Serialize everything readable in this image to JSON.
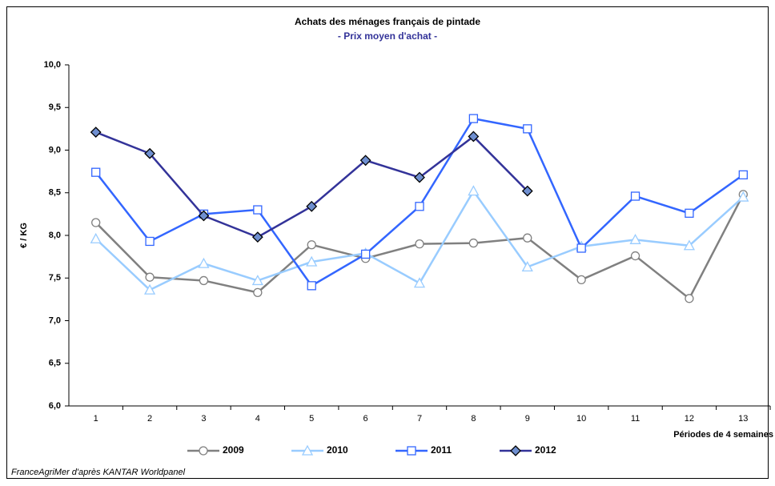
{
  "chart_data": {
    "type": "line",
    "title": "Achats des ménages français de pintade",
    "subtitle": "- Prix moyen d'achat -",
    "y_label": "€ / KG",
    "x_label": "Périodes de 4 semaines",
    "source": "FranceAgriMer d'après KANTAR Worldpanel",
    "categories": [
      "1",
      "2",
      "3",
      "4",
      "5",
      "6",
      "7",
      "8",
      "9",
      "10",
      "11",
      "12",
      "13"
    ],
    "ylim": [
      6,
      10
    ],
    "yticks": [
      {
        "value": 6,
        "label": "6,0"
      },
      {
        "value": 6.5,
        "label": "6,5"
      },
      {
        "value": 7,
        "label": "7,0"
      },
      {
        "value": 7.5,
        "label": "7,5"
      },
      {
        "value": 8,
        "label": "8,0"
      },
      {
        "value": 8.5,
        "label": "8,5"
      },
      {
        "value": 9,
        "label": "9,0"
      },
      {
        "value": 9.5,
        "label": "9,5"
      },
      {
        "value": 10,
        "label": "10,0"
      }
    ],
    "grid": false,
    "legend": "bottom",
    "series": [
      {
        "name": "2009",
        "color": "#808080",
        "marker": "circle",
        "marker_fill": "#ffffff",
        "values": [
          8.15,
          7.51,
          7.47,
          7.33,
          7.89,
          7.73,
          7.9,
          7.91,
          7.97,
          7.48,
          7.76,
          7.26,
          8.48
        ]
      },
      {
        "name": "2010",
        "color": "#99ccff",
        "marker": "triangle",
        "marker_fill": "#ffffff",
        "values": [
          7.96,
          7.36,
          7.67,
          7.47,
          7.69,
          7.79,
          7.44,
          8.52,
          7.63,
          7.87,
          7.95,
          7.88,
          8.45
        ]
      },
      {
        "name": "2011",
        "color": "#3366ff",
        "marker": "square",
        "marker_fill": "#ffffff",
        "values": [
          8.74,
          7.93,
          8.25,
          8.3,
          7.41,
          7.78,
          8.34,
          9.37,
          9.25,
          7.85,
          8.46,
          8.26,
          8.71
        ]
      },
      {
        "name": "2012",
        "color": "#333399",
        "marker": "diamond",
        "marker_fill": "#6f8fd0",
        "values": [
          9.21,
          8.96,
          8.23,
          7.98,
          8.34,
          8.88,
          8.68,
          9.16,
          8.52,
          null,
          null,
          null,
          null
        ]
      }
    ]
  }
}
